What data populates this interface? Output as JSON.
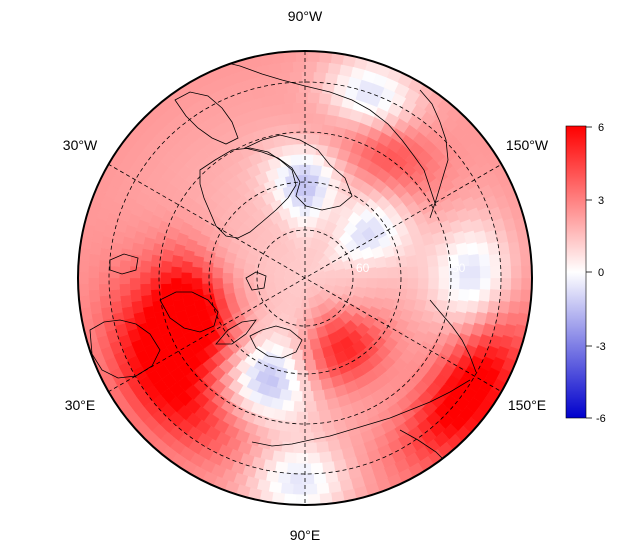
{
  "map": {
    "projection": "north-polar-stereographic",
    "longitude_labels": {
      "top": "90°W",
      "upper_left": "30°W",
      "upper_right": "150°W",
      "lower_left": "30°E",
      "lower_right": "150°E",
      "bottom": "90°E"
    },
    "latitude_labels": [
      "60",
      "50"
    ]
  },
  "colorbar": {
    "ticks": [
      "6",
      "3",
      "0",
      "-3",
      "-6"
    ],
    "colors": {
      "max": "#ff0000",
      "mid": "#ffffff",
      "min": "#0000cc"
    }
  }
}
